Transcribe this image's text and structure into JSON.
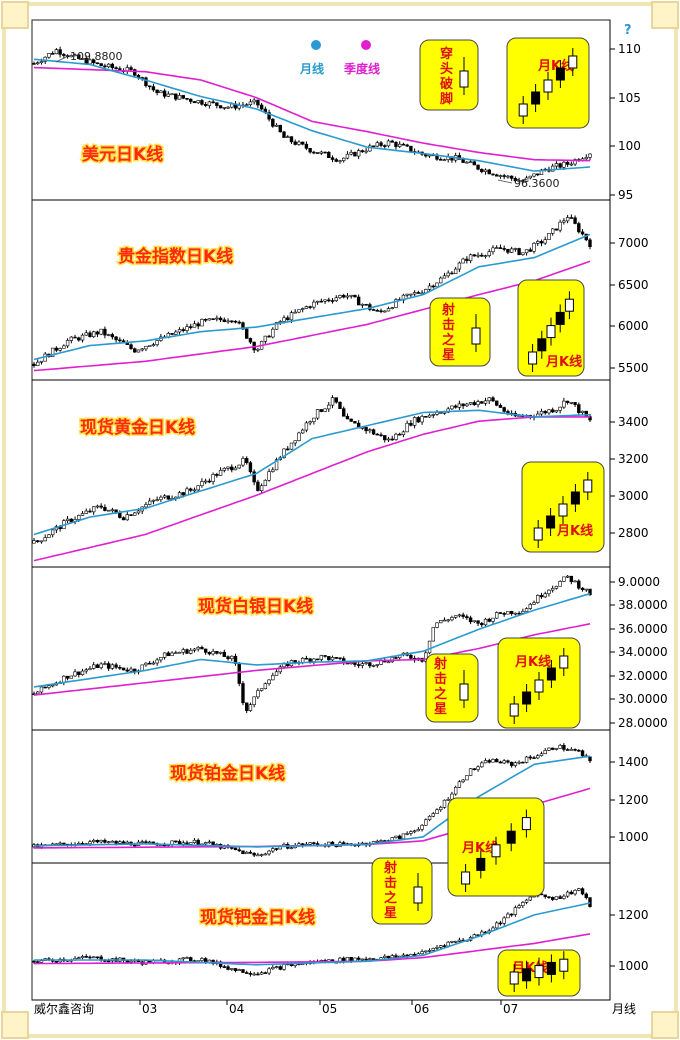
{
  "footer": {
    "source": "威尔鑫咨询",
    "x_unit": "月线",
    "corner_mark": "?"
  },
  "legend": {
    "items": [
      {
        "label": "月线",
        "color": "#2a9ad0"
      },
      {
        "label": "季度线",
        "color": "#e020d0"
      }
    ]
  },
  "colors": {
    "ma_month": "#2a9ad0",
    "ma_quarter": "#e020d0",
    "inset_fill": "#ffff00",
    "border": "#f2e6b0"
  },
  "chart_data": [
    {
      "type": "candlestick",
      "title": "美元日K线",
      "x": [
        "03",
        "04",
        "05",
        "06",
        "07"
      ],
      "ylim": [
        95,
        112
      ],
      "y_ticks": [
        "110",
        "105",
        "100",
        "95"
      ],
      "annotations": [
        {
          "label": "109.8800",
          "value": 109.88
        },
        {
          "label": "96.3600",
          "value": 96.36
        }
      ],
      "insets": [
        {
          "label": "穿头破脚"
        },
        {
          "label": "月K线"
        }
      ],
      "anchors": [
        [
          0,
          108
        ],
        [
          0.04,
          109.3
        ],
        [
          0.07,
          108.6
        ],
        [
          0.12,
          107.8
        ],
        [
          0.18,
          107.2
        ],
        [
          0.22,
          105.2
        ],
        [
          0.28,
          104.5
        ],
        [
          0.35,
          103.8
        ],
        [
          0.4,
          104.2
        ],
        [
          0.45,
          100.8
        ],
        [
          0.5,
          99.6
        ],
        [
          0.55,
          98.7
        ],
        [
          0.6,
          99.8
        ],
        [
          0.64,
          100.4
        ],
        [
          0.7,
          99.2
        ],
        [
          0.76,
          98.8
        ],
        [
          0.8,
          97.9
        ],
        [
          0.84,
          97.2
        ],
        [
          0.88,
          96.6
        ],
        [
          0.92,
          97.8
        ],
        [
          0.96,
          98.3
        ],
        [
          1,
          99.4
        ]
      ],
      "ma_month": [
        [
          0,
          108.4
        ],
        [
          0.1,
          107.9
        ],
        [
          0.2,
          106.4
        ],
        [
          0.3,
          104.8
        ],
        [
          0.4,
          103.6
        ],
        [
          0.5,
          101.5
        ],
        [
          0.6,
          99.9
        ],
        [
          0.7,
          99.3
        ],
        [
          0.8,
          98.6
        ],
        [
          0.9,
          97.6
        ],
        [
          1,
          98.0
        ]
      ],
      "ma_quarter": [
        [
          0,
          107.6
        ],
        [
          0.2,
          107.2
        ],
        [
          0.3,
          106.4
        ],
        [
          0.4,
          104.7
        ],
        [
          0.5,
          102.4
        ],
        [
          0.6,
          101.4
        ],
        [
          0.7,
          100.3
        ],
        [
          0.8,
          99.4
        ],
        [
          0.9,
          98.7
        ],
        [
          1,
          98.6
        ]
      ]
    },
    {
      "type": "candlestick",
      "title": "贵金指数日K线",
      "x": [
        "03",
        "04",
        "05",
        "06",
        "07"
      ],
      "ylim": [
        5400,
        7300
      ],
      "y_ticks": [
        "7000",
        "6500",
        "6000",
        "5500"
      ],
      "insets": [
        {
          "label": "射击之星"
        },
        {
          "label": "月K线"
        }
      ],
      "anchors": [
        [
          0,
          5550
        ],
        [
          0.06,
          5800
        ],
        [
          0.12,
          5900
        ],
        [
          0.18,
          5700
        ],
        [
          0.24,
          5850
        ],
        [
          0.3,
          6000
        ],
        [
          0.36,
          6050
        ],
        [
          0.4,
          5700
        ],
        [
          0.44,
          6000
        ],
        [
          0.5,
          6200
        ],
        [
          0.56,
          6300
        ],
        [
          0.62,
          6100
        ],
        [
          0.66,
          6250
        ],
        [
          0.7,
          6350
        ],
        [
          0.74,
          6500
        ],
        [
          0.78,
          6700
        ],
        [
          0.84,
          6800
        ],
        [
          0.88,
          6750
        ],
        [
          0.92,
          6900
        ],
        [
          0.96,
          7150
        ],
        [
          1,
          6850
        ]
      ],
      "ma_month": [
        [
          0,
          5600
        ],
        [
          0.1,
          5750
        ],
        [
          0.2,
          5800
        ],
        [
          0.3,
          5900
        ],
        [
          0.4,
          5950
        ],
        [
          0.5,
          6050
        ],
        [
          0.6,
          6150
        ],
        [
          0.7,
          6300
        ],
        [
          0.8,
          6600
        ],
        [
          0.9,
          6700
        ],
        [
          1,
          6950
        ]
      ],
      "ma_quarter": [
        [
          0,
          5480
        ],
        [
          0.2,
          5580
        ],
        [
          0.4,
          5740
        ],
        [
          0.6,
          5980
        ],
        [
          0.8,
          6300
        ],
        [
          0.9,
          6450
        ],
        [
          1,
          6660
        ]
      ]
    },
    {
      "type": "candlestick",
      "title": "现货黄金日K线",
      "x": [
        "03",
        "04",
        "05",
        "06",
        "07"
      ],
      "ylim": [
        2660,
        3500
      ],
      "y_ticks": [
        "3400",
        "3200",
        "3000",
        "2800"
      ],
      "insets": [
        {
          "label": "月K线"
        }
      ],
      "anchors": [
        [
          0,
          2760
        ],
        [
          0.06,
          2860
        ],
        [
          0.12,
          2930
        ],
        [
          0.16,
          2880
        ],
        [
          0.22,
          2960
        ],
        [
          0.28,
          3000
        ],
        [
          0.33,
          3080
        ],
        [
          0.38,
          3140
        ],
        [
          0.4,
          3000
        ],
        [
          0.44,
          3150
        ],
        [
          0.5,
          3340
        ],
        [
          0.54,
          3420
        ],
        [
          0.56,
          3320
        ],
        [
          0.6,
          3280
        ],
        [
          0.64,
          3230
        ],
        [
          0.68,
          3320
        ],
        [
          0.72,
          3360
        ],
        [
          0.78,
          3400
        ],
        [
          0.82,
          3420
        ],
        [
          0.86,
          3340
        ],
        [
          0.9,
          3350
        ],
        [
          0.94,
          3380
        ],
        [
          0.96,
          3420
        ],
        [
          1,
          3320
        ]
      ],
      "ma_month": [
        [
          0,
          2800
        ],
        [
          0.1,
          2880
        ],
        [
          0.2,
          2920
        ],
        [
          0.3,
          3000
        ],
        [
          0.4,
          3080
        ],
        [
          0.5,
          3240
        ],
        [
          0.6,
          3300
        ],
        [
          0.7,
          3360
        ],
        [
          0.8,
          3370
        ],
        [
          0.9,
          3340
        ],
        [
          1,
          3350
        ]
      ],
      "ma_quarter": [
        [
          0,
          2680
        ],
        [
          0.2,
          2800
        ],
        [
          0.4,
          2980
        ],
        [
          0.5,
          3080
        ],
        [
          0.6,
          3180
        ],
        [
          0.7,
          3260
        ],
        [
          0.8,
          3320
        ],
        [
          0.9,
          3340
        ],
        [
          1,
          3340
        ]
      ]
    },
    {
      "type": "candlestick",
      "title": "现货白银日K线",
      "x": [
        "03",
        "04",
        "05",
        "06",
        "07"
      ],
      "ylim": [
        28,
        39.6
      ],
      "y_ticks": [
        "9.0000",
        "38.0000",
        "36.0000",
        "34.0000",
        "32.0000",
        "30.0000",
        "28.0000"
      ],
      "insets": [
        {
          "label": "射击之星"
        },
        {
          "label": "月K线"
        }
      ],
      "anchors": [
        [
          0,
          30.5
        ],
        [
          0.06,
          31.8
        ],
        [
          0.12,
          32.6
        ],
        [
          0.18,
          32.2
        ],
        [
          0.24,
          33.4
        ],
        [
          0.3,
          33.8
        ],
        [
          0.36,
          33.0
        ],
        [
          0.38,
          29.2
        ],
        [
          0.42,
          31.6
        ],
        [
          0.46,
          32.8
        ],
        [
          0.52,
          33.2
        ],
        [
          0.58,
          32.6
        ],
        [
          0.62,
          32.8
        ],
        [
          0.66,
          33.3
        ],
        [
          0.7,
          33.0
        ],
        [
          0.72,
          35.6
        ],
        [
          0.76,
          36.2
        ],
        [
          0.8,
          35.6
        ],
        [
          0.84,
          36.4
        ],
        [
          0.88,
          36.6
        ],
        [
          0.92,
          38.0
        ],
        [
          0.96,
          39.0
        ],
        [
          1,
          37.8
        ]
      ],
      "ma_month": [
        [
          0,
          31.0
        ],
        [
          0.1,
          31.6
        ],
        [
          0.2,
          32.2
        ],
        [
          0.3,
          33.0
        ],
        [
          0.4,
          32.6
        ],
        [
          0.5,
          32.8
        ],
        [
          0.6,
          32.9
        ],
        [
          0.7,
          33.6
        ],
        [
          0.8,
          35.2
        ],
        [
          0.9,
          36.6
        ],
        [
          1,
          37.8
        ]
      ],
      "ma_quarter": [
        [
          0,
          30.4
        ],
        [
          0.2,
          31.3
        ],
        [
          0.4,
          32.2
        ],
        [
          0.6,
          32.9
        ],
        [
          0.7,
          33.0
        ],
        [
          0.8,
          33.8
        ],
        [
          0.9,
          34.8
        ],
        [
          1,
          35.6
        ]
      ]
    },
    {
      "type": "candlestick",
      "title": "现货铂金日K线",
      "x": [
        "03",
        "04",
        "05",
        "06",
        "07"
      ],
      "ylim": [
        880,
        1520
      ],
      "y_ticks": [
        "1400",
        "1200",
        "1000"
      ],
      "insets": [
        {
          "label": "月K线"
        }
      ],
      "anchors": [
        [
          0,
          950
        ],
        [
          0.1,
          975
        ],
        [
          0.2,
          965
        ],
        [
          0.3,
          975
        ],
        [
          0.36,
          935
        ],
        [
          0.4,
          905
        ],
        [
          0.44,
          950
        ],
        [
          0.5,
          965
        ],
        [
          0.56,
          960
        ],
        [
          0.62,
          975
        ],
        [
          0.66,
          1000
        ],
        [
          0.7,
          1060
        ],
        [
          0.74,
          1180
        ],
        [
          0.78,
          1320
        ],
        [
          0.82,
          1380
        ],
        [
          0.86,
          1360
        ],
        [
          0.9,
          1400
        ],
        [
          0.94,
          1450
        ],
        [
          0.98,
          1420
        ],
        [
          1,
          1370
        ]
      ],
      "ma_month": [
        [
          0,
          955
        ],
        [
          0.2,
          965
        ],
        [
          0.4,
          950
        ],
        [
          0.6,
          962
        ],
        [
          0.7,
          1000
        ],
        [
          0.8,
          1200
        ],
        [
          0.9,
          1360
        ],
        [
          1,
          1400
        ]
      ],
      "ma_quarter": [
        [
          0,
          945
        ],
        [
          0.4,
          952
        ],
        [
          0.6,
          962
        ],
        [
          0.7,
          980
        ],
        [
          0.8,
          1060
        ],
        [
          0.9,
          1160
        ],
        [
          1,
          1240
        ]
      ]
    },
    {
      "type": "candlestick",
      "title": "现货钯金日K线",
      "x": [
        "03",
        "04",
        "05",
        "06",
        "07"
      ],
      "ylim": [
        820,
        1380
      ],
      "y_ticks": [
        "1200",
        "1000"
      ],
      "insets": [
        {
          "label": "射击之星"
        },
        {
          "label": "月K线"
        }
      ],
      "anchors": [
        [
          0,
          975
        ],
        [
          0.1,
          990
        ],
        [
          0.2,
          970
        ],
        [
          0.3,
          985
        ],
        [
          0.36,
          940
        ],
        [
          0.4,
          925
        ],
        [
          0.46,
          960
        ],
        [
          0.52,
          975
        ],
        [
          0.58,
          985
        ],
        [
          0.64,
          990
        ],
        [
          0.7,
          1010
        ],
        [
          0.74,
          1050
        ],
        [
          0.78,
          1070
        ],
        [
          0.82,
          1110
        ],
        [
          0.86,
          1180
        ],
        [
          0.9,
          1260
        ],
        [
          0.94,
          1240
        ],
        [
          0.98,
          1280
        ],
        [
          1,
          1210
        ]
      ],
      "ma_month": [
        [
          0,
          980
        ],
        [
          0.2,
          980
        ],
        [
          0.4,
          960
        ],
        [
          0.6,
          975
        ],
        [
          0.7,
          1000
        ],
        [
          0.8,
          1080
        ],
        [
          0.9,
          1170
        ],
        [
          1,
          1220
        ]
      ],
      "ma_quarter": [
        [
          0,
          965
        ],
        [
          0.4,
          970
        ],
        [
          0.6,
          975
        ],
        [
          0.7,
          990
        ],
        [
          0.8,
          1020
        ],
        [
          0.9,
          1050
        ],
        [
          1,
          1090
        ]
      ]
    }
  ]
}
